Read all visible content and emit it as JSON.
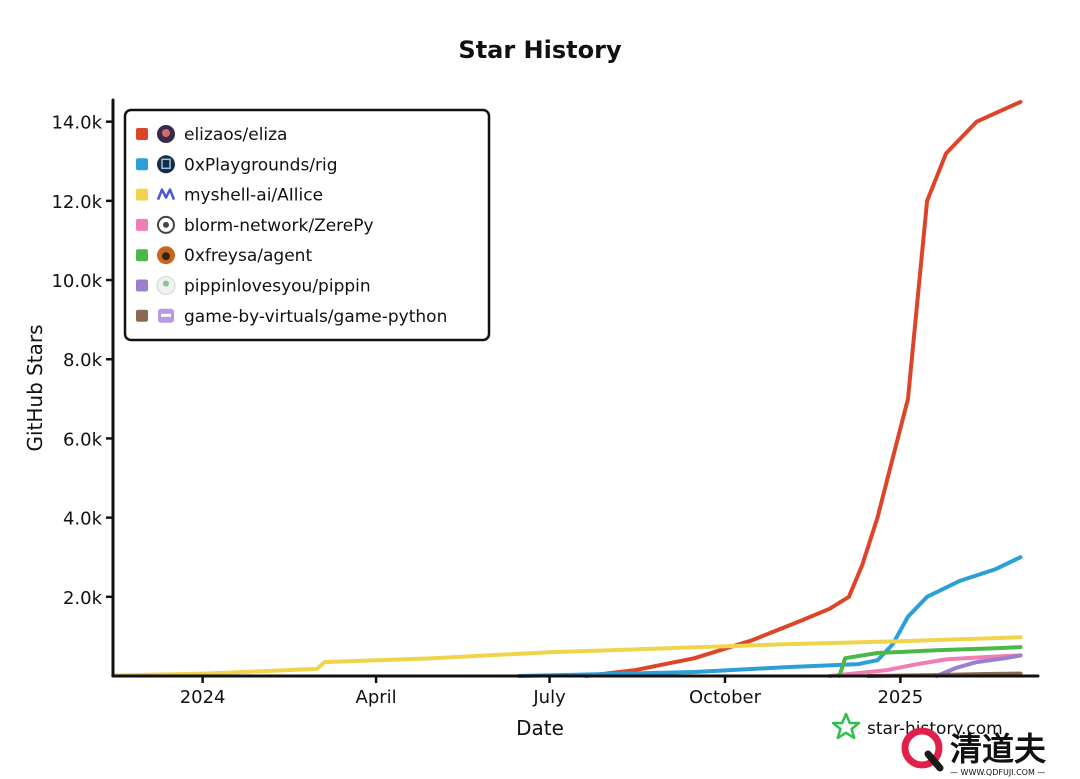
{
  "chart_data": {
    "type": "line",
    "title": "Star History",
    "xlabel": "Date",
    "ylabel": "GitHub Stars",
    "x_range": [
      "2023-11-15",
      "2025-03-10"
    ],
    "ylim": [
      0,
      14800
    ],
    "y_ticks": [
      {
        "value": 2000,
        "label": "2.0k"
      },
      {
        "value": 4000,
        "label": "4.0k"
      },
      {
        "value": 6000,
        "label": "6.0k"
      },
      {
        "value": 8000,
        "label": "8.0k"
      },
      {
        "value": 10000,
        "label": "10.0k"
      },
      {
        "value": 12000,
        "label": "12.0k"
      },
      {
        "value": 14000,
        "label": "14.0k"
      }
    ],
    "x_ticks": [
      {
        "date": "2024-01-01",
        "label": "2024"
      },
      {
        "date": "2024-04-01",
        "label": "April"
      },
      {
        "date": "2024-07-01",
        "label": "July"
      },
      {
        "date": "2024-10-01",
        "label": "October"
      },
      {
        "date": "2025-01-01",
        "label": "2025"
      }
    ],
    "grid": false,
    "legend_position": "top-left",
    "series": [
      {
        "name": "elizaos/eliza",
        "color": "#dd4528",
        "icon": "avatar-eliza-icon",
        "points": [
          [
            "2024-07-20",
            0
          ],
          [
            "2024-08-15",
            150
          ],
          [
            "2024-09-15",
            450
          ],
          [
            "2024-10-15",
            900
          ],
          [
            "2024-11-10",
            1400
          ],
          [
            "2024-11-25",
            1700
          ],
          [
            "2024-12-05",
            2000
          ],
          [
            "2024-12-12",
            2800
          ],
          [
            "2024-12-20",
            4000
          ],
          [
            "2024-12-28",
            5500
          ],
          [
            "2025-01-05",
            7000
          ],
          [
            "2025-01-10",
            9500
          ],
          [
            "2025-01-15",
            12000
          ],
          [
            "2025-01-25",
            13200
          ],
          [
            "2025-02-10",
            14000
          ],
          [
            "2025-03-05",
            14500
          ]
        ]
      },
      {
        "name": "0xPlaygrounds/rig",
        "color": "#2a9fd8",
        "icon": "avatar-rig-icon",
        "points": [
          [
            "2024-06-15",
            0
          ],
          [
            "2024-07-15",
            30
          ],
          [
            "2024-09-15",
            100
          ],
          [
            "2024-11-01",
            220
          ],
          [
            "2024-12-10",
            300
          ],
          [
            "2024-12-20",
            400
          ],
          [
            "2024-12-28",
            800
          ],
          [
            "2025-01-05",
            1500
          ],
          [
            "2025-01-15",
            2000
          ],
          [
            "2025-02-01",
            2400
          ],
          [
            "2025-02-20",
            2700
          ],
          [
            "2025-03-05",
            3000
          ]
        ]
      },
      {
        "name": "myshell-ai/AIlice",
        "color": "#f0d44c",
        "icon": "avatar-ailice-icon",
        "points": [
          [
            "2023-11-15",
            10
          ],
          [
            "2024-01-01",
            60
          ],
          [
            "2024-03-01",
            180
          ],
          [
            "2024-03-05",
            350
          ],
          [
            "2024-05-01",
            450
          ],
          [
            "2024-07-01",
            600
          ],
          [
            "2024-09-01",
            700
          ],
          [
            "2024-11-01",
            800
          ],
          [
            "2025-01-01",
            880
          ],
          [
            "2025-03-05",
            980
          ]
        ]
      },
      {
        "name": "blorm-network/ZerePy",
        "color": "#f07db4",
        "icon": "avatar-zerepy-icon",
        "points": [
          [
            "2024-11-25",
            0
          ],
          [
            "2024-12-25",
            150
          ],
          [
            "2025-01-10",
            300
          ],
          [
            "2025-01-25",
            420
          ],
          [
            "2025-02-15",
            480
          ],
          [
            "2025-03-05",
            520
          ]
        ]
      },
      {
        "name": "0xfreysa/agent",
        "color": "#4cb749",
        "icon": "avatar-freysa-icon",
        "points": [
          [
            "2024-11-30",
            0
          ],
          [
            "2024-12-03",
            450
          ],
          [
            "2024-12-20",
            580
          ],
          [
            "2025-01-20",
            650
          ],
          [
            "2025-02-20",
            700
          ],
          [
            "2025-03-05",
            730
          ]
        ]
      },
      {
        "name": "pippinlovesyou/pippin",
        "color": "#9a7fce",
        "icon": "avatar-pippin-icon",
        "points": [
          [
            "2025-01-20",
            0
          ],
          [
            "2025-01-30",
            200
          ],
          [
            "2025-02-10",
            350
          ],
          [
            "2025-02-25",
            450
          ],
          [
            "2025-03-05",
            520
          ]
        ]
      },
      {
        "name": "game-by-virtuals/game-python",
        "color": "#8a6a52",
        "icon": "avatar-game-icon",
        "points": [
          [
            "2024-12-15",
            0
          ],
          [
            "2025-01-15",
            20
          ],
          [
            "2025-02-15",
            50
          ],
          [
            "2025-03-05",
            60
          ]
        ]
      }
    ]
  },
  "watermark": {
    "text": "star-history.com",
    "icon": "star-logo-icon"
  },
  "brand": {
    "name": "清道夫",
    "url": "— WWW.QDFUJI.COM —",
    "icon": "brand-q-logo-icon"
  }
}
